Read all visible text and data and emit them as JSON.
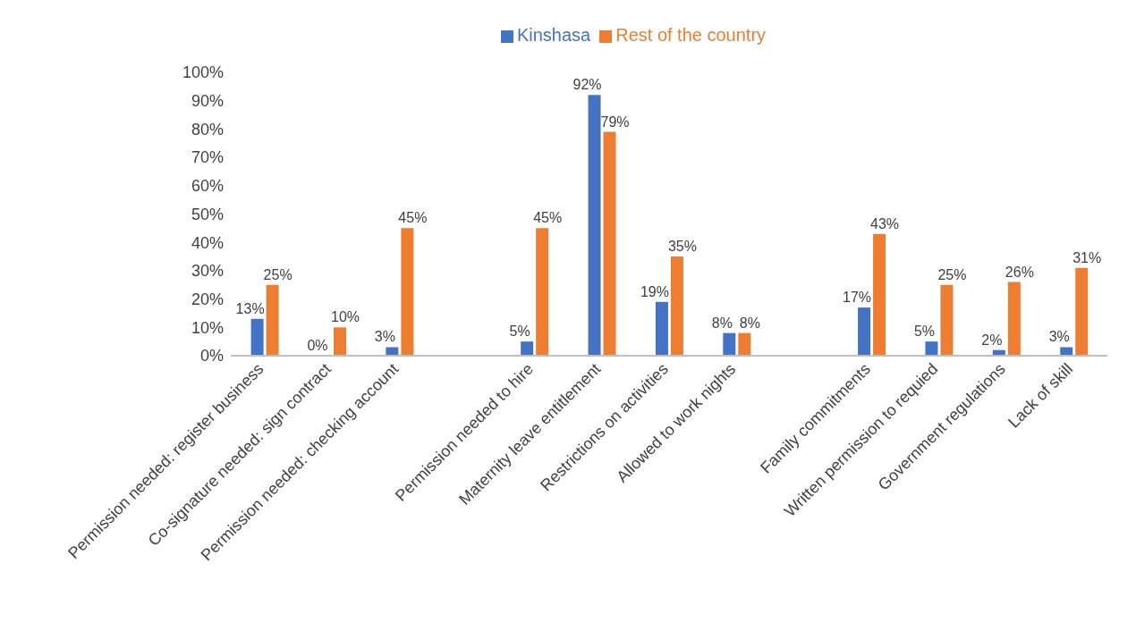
{
  "chart_data": {
    "type": "bar",
    "categories": [
      "Permission needed: register business",
      "Co-signature needed: sign contract",
      "Permission needed: checking account",
      null,
      "Permission needed to hire",
      "Maternity leave entitlement",
      "Restrictions on activities",
      "Allowed to work nights",
      null,
      "Family commitments",
      "Written permission to requied",
      "Government regulations",
      "Lack of skill"
    ],
    "series": [
      {
        "name": "Kinshasa",
        "color": "#4472c4",
        "values": [
          13,
          0,
          3,
          null,
          5,
          92,
          19,
          8,
          null,
          17,
          5,
          2,
          3
        ],
        "value_labels": [
          "13%",
          "0%",
          "3%",
          null,
          "5%",
          "92%",
          "19%",
          "8%",
          null,
          "17%",
          "5%",
          "2%",
          "3%"
        ]
      },
      {
        "name": "Rest of the country",
        "color": "#ed7d31",
        "values": [
          25,
          10,
          45,
          null,
          45,
          79,
          35,
          8,
          null,
          43,
          25,
          26,
          31
        ],
        "value_labels": [
          "25%",
          "10%",
          "45%",
          null,
          "45%",
          "79%",
          "35%",
          "8%",
          null,
          "43%",
          "25%",
          "26%",
          "31%"
        ]
      }
    ],
    "ylim": [
      0,
      100
    ],
    "yticks": [
      {
        "value": 0,
        "label": "0%"
      },
      {
        "value": 10,
        "label": "10%"
      },
      {
        "value": 20,
        "label": "20%"
      },
      {
        "value": 30,
        "label": "30%"
      },
      {
        "value": 40,
        "label": "40%"
      },
      {
        "value": 50,
        "label": "50%"
      },
      {
        "value": 60,
        "label": "60%"
      },
      {
        "value": 70,
        "label": "70%"
      },
      {
        "value": 80,
        "label": "80%"
      },
      {
        "value": 90,
        "label": "90%"
      },
      {
        "value": 100,
        "label": "100%"
      }
    ],
    "grid": false,
    "legend": "top"
  }
}
